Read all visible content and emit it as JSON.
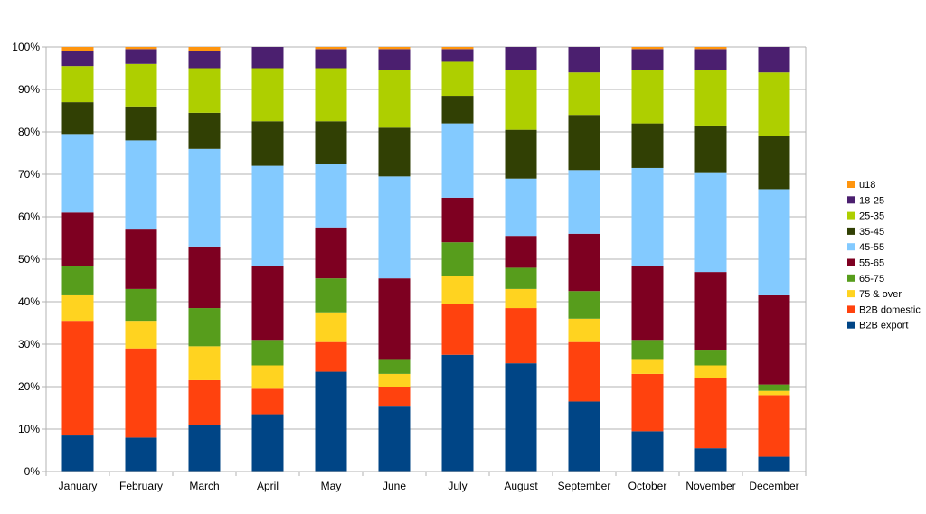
{
  "chart_data": {
    "type": "bar",
    "stacked": true,
    "percent": true,
    "title": "",
    "xlabel": "",
    "ylabel": "",
    "ylim": [
      0,
      100
    ],
    "yticks": [
      "0%",
      "10%",
      "20%",
      "30%",
      "40%",
      "50%",
      "60%",
      "70%",
      "80%",
      "90%",
      "100%"
    ],
    "grid": true,
    "legend_position": "right",
    "categories": [
      "January",
      "February",
      "March",
      "April",
      "May",
      "June",
      "July",
      "August",
      "September",
      "October",
      "November",
      "December"
    ],
    "series": [
      {
        "name": "B2B export",
        "color": "#004586",
        "values": [
          8.5,
          8,
          11,
          13.5,
          23.5,
          15.5,
          27.5,
          25.5,
          16.5,
          9.5,
          5.5,
          3.5
        ]
      },
      {
        "name": "B2B domestic",
        "color": "#ff420e",
        "values": [
          27,
          21,
          10.5,
          6,
          7,
          4.5,
          12,
          13,
          14,
          13.5,
          16.5,
          14.5
        ]
      },
      {
        "name": "75 & over",
        "color": "#ffd320",
        "values": [
          6,
          6.5,
          8,
          5.5,
          7,
          3,
          6.5,
          4.5,
          5.5,
          3.5,
          3,
          1
        ]
      },
      {
        "name": "65-75",
        "color": "#579d1c",
        "values": [
          7,
          7.5,
          9,
          6,
          8,
          3.5,
          8,
          5,
          6.5,
          4.5,
          3.5,
          1.5
        ]
      },
      {
        "name": "55-65",
        "color": "#7e0021",
        "values": [
          12.5,
          14,
          14.5,
          17.5,
          12,
          19,
          10.5,
          7.5,
          13.5,
          17.5,
          18.5,
          21
        ]
      },
      {
        "name": "45-55",
        "color": "#83caff",
        "values": [
          18.5,
          21,
          23,
          23.5,
          15,
          24,
          17.5,
          13.5,
          15,
          23,
          23.5,
          25
        ]
      },
      {
        "name": "35-45",
        "color": "#314004",
        "values": [
          7.5,
          8,
          8.5,
          10.5,
          10,
          11.5,
          6.5,
          11.5,
          13,
          10.5,
          11,
          12.5
        ]
      },
      {
        "name": "25-35",
        "color": "#aecf00",
        "values": [
          8.5,
          10,
          10.5,
          12.5,
          12.5,
          13.5,
          8,
          14,
          10,
          12.5,
          13,
          15
        ]
      },
      {
        "name": "18-25",
        "color": "#4b1f6f",
        "values": [
          3.5,
          3.5,
          4,
          5,
          4.5,
          5,
          3,
          5.5,
          6,
          5,
          5,
          6
        ]
      },
      {
        "name": "u18",
        "color": "#ff950e",
        "values": [
          1,
          0.5,
          1,
          0,
          0.5,
          0.5,
          0.5,
          0,
          0,
          0.5,
          0.5,
          0
        ]
      }
    ]
  }
}
